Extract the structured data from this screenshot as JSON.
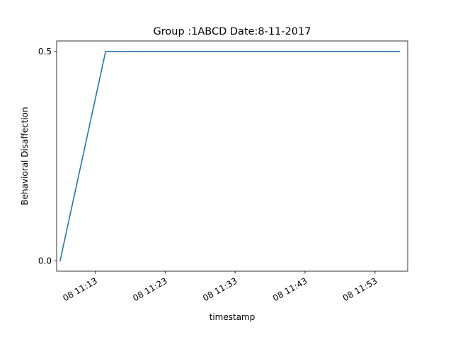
{
  "chart_data": {
    "type": "line",
    "title": "Group :1ABCD Date:8-11-2017",
    "xlabel": "timestamp",
    "ylabel": "Behavioral Disaffection",
    "x_tick_labels": [
      "08 11:13",
      "08 11:23",
      "08 11:33",
      "08 11:43",
      "08 11:53"
    ],
    "y_tick_labels": [
      "0.0",
      "0.5"
    ],
    "y_ticks": [
      0.0,
      0.5
    ],
    "ylim": [
      -0.025,
      0.525
    ],
    "x_tick_times": [
      "11:13",
      "11:23",
      "11:33",
      "11:43",
      "11:53"
    ],
    "xlim": [
      "11:07:30",
      "11:57:40"
    ],
    "grid": false,
    "series": [
      {
        "color": "#1f77b4",
        "x": [
          "11:08",
          "11:14:30",
          "11:56:30"
        ],
        "values": [
          0.0,
          0.5,
          0.5
        ]
      }
    ]
  }
}
